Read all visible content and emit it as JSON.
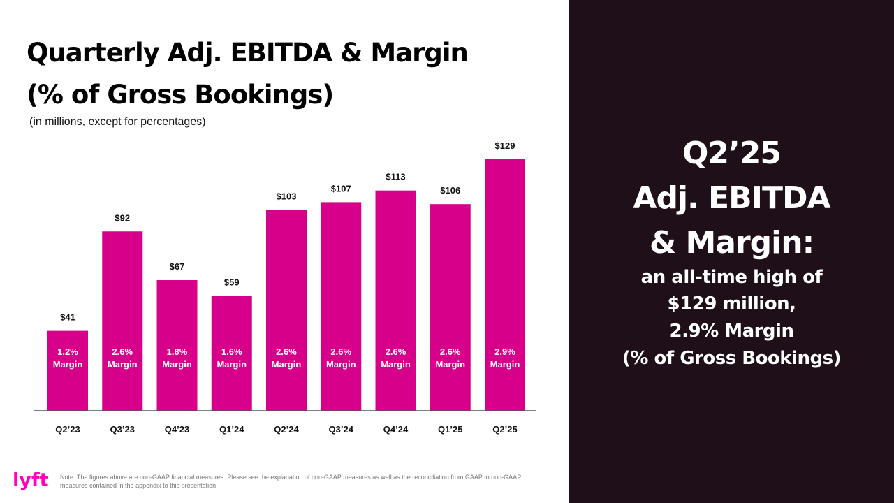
{
  "title_line1": "Quarterly Adj. EBITDA & Margin",
  "title_line2": "(% of Gross Bookings)",
  "subtitle": "(in millions, except for percentages)",
  "footnote": "Note: The figures above are non-GAAP financial measures. Please see the explanation of non-GAAP measures as well as the reconciliation from GAAP to non-GAAP measures contained in the appendix to this presentation.",
  "logo_text": "lyft",
  "colors": {
    "bar": "#d6008a",
    "panel": "#1f0f18",
    "logo": "#ff00bf"
  },
  "callout": {
    "line1": "Q2’25",
    "line2": "Adj. EBITDA",
    "line3": "& Margin:",
    "line4": "an all-time high of",
    "line5": "$129 million,",
    "line6": "2.9% Margin",
    "line7": "(% of Gross Bookings)"
  },
  "chart_data": {
    "type": "bar",
    "categories": [
      "Q2’23",
      "Q3’23",
      "Q4’23",
      "Q1’24",
      "Q2’24",
      "Q3’24",
      "Q4’24",
      "Q1’25",
      "Q2’25"
    ],
    "values": [
      41,
      92,
      67,
      59,
      103,
      107,
      113,
      106,
      129
    ],
    "value_labels": [
      "$41",
      "$92",
      "$67",
      "$59",
      "$103",
      "$107",
      "$113",
      "$106",
      "$129"
    ],
    "margins": [
      "1.2%",
      "2.6%",
      "1.8%",
      "1.6%",
      "2.6%",
      "2.6%",
      "2.6%",
      "2.6%",
      "2.9%"
    ],
    "margin_label": "Margin",
    "title": "Quarterly Adj. EBITDA & Margin",
    "xlabel": "",
    "ylabel": "",
    "ylim": [
      0,
      129
    ],
    "grid": false,
    "legend": "none"
  }
}
